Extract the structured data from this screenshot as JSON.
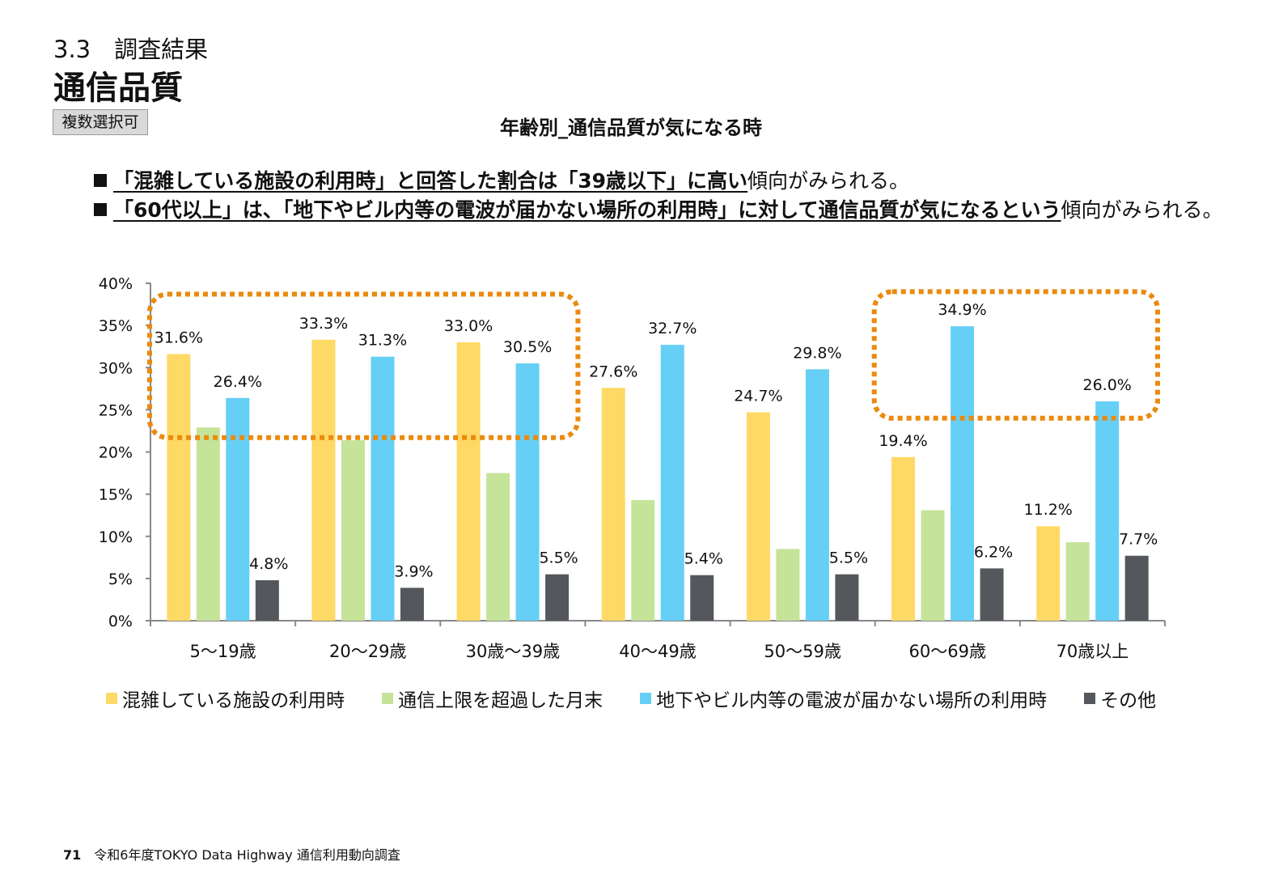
{
  "header": {
    "section": "3.3　調査結果",
    "title": "通信品質",
    "badge": "複数選択可"
  },
  "bullets": [
    {
      "hl": "「混雑している施設の利用時」と回答した割合は「39歳以下」に高い",
      "rest": "傾向がみられる。"
    },
    {
      "hl": "「60代以上」は、「地下やビル内等の電波が届かない場所の利用時」に対して通信品質が気になるという",
      "rest": "傾向がみられる。"
    }
  ],
  "chart_data": {
    "type": "bar",
    "title": "年齢別_通信品質が気になる時",
    "categories": [
      "5～19歳",
      "20～29歳",
      "30歳～39歳",
      "40～49歳",
      "50～59歳",
      "60～69歳",
      "70歳以上"
    ],
    "series": [
      {
        "name": "混雑している施設の利用時",
        "color": "#ffd966",
        "values": [
          31.6,
          33.3,
          33.0,
          27.6,
          24.7,
          19.4,
          11.2
        ],
        "labels": [
          "31.6%",
          "33.3%",
          "33.0%",
          "27.6%",
          "24.7%",
          "19.4%",
          "11.2%"
        ]
      },
      {
        "name": "通信上限を超過した月末",
        "color": "#c5e49a",
        "values": [
          22.9,
          21.4,
          17.5,
          14.3,
          8.5,
          13.1,
          9.3
        ],
        "labels": []
      },
      {
        "name": "地下やビル内等の電波が届かない場所の利用時",
        "color": "#66cff5",
        "values": [
          26.4,
          31.3,
          30.5,
          32.7,
          29.8,
          34.9,
          26.0
        ],
        "labels": [
          "26.4%",
          "31.3%",
          "30.5%",
          "32.7%",
          "29.8%",
          "34.9%",
          "26.0%"
        ]
      },
      {
        "name": "その他",
        "color": "#54585d",
        "values": [
          4.8,
          3.9,
          5.5,
          5.4,
          5.5,
          6.2,
          7.7
        ],
        "labels": [
          "4.8%",
          "3.9%",
          "5.5%",
          "5.4%",
          "5.5%",
          "6.2%",
          "7.7%"
        ]
      }
    ],
    "yticks": [
      "0%",
      "5%",
      "10%",
      "15%",
      "20%",
      "25%",
      "30%",
      "35%",
      "40%"
    ],
    "ylim": [
      0,
      40
    ],
    "grid": false,
    "legend": "bottom",
    "highlight_color": "#ea8a0f",
    "highlights": [
      {
        "categories": [
          0,
          2
        ],
        "y_range": [
          21.7,
          38.7
        ]
      },
      {
        "categories": [
          5,
          6
        ],
        "y_range": [
          24.0,
          39.0
        ]
      }
    ]
  },
  "footer": {
    "page_number": "71",
    "text": "令和6年度TOKYO Data Highway 通信利用動向調査"
  }
}
